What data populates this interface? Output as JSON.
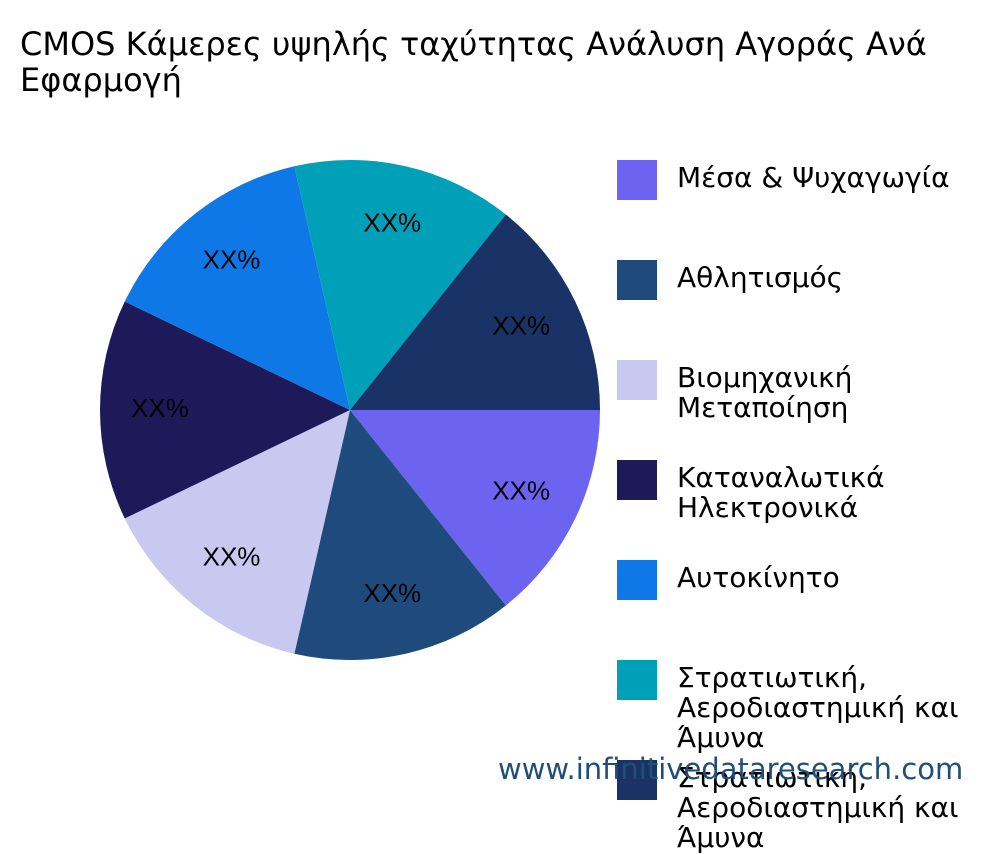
{
  "chart_data": {
    "type": "pie",
    "title": "CMOS Κάμερες υψηλής ταχύτητας Ανάλυση Αγοράς Ανά Εφαρμογή",
    "categories": [
      "Μέσα & Ψυχαγωγία",
      "Αθλητισμός",
      "Βιομηχανική Μεταποίηση",
      "Καταναλωτικά Ηλεκτρονικά",
      "Αυτοκίνητο",
      "Στρατιωτική, Αεροδιαστημική και Άμυνα",
      "Στρατιωτική, Αεροδιαστημική και Άμυνα"
    ],
    "values": [
      14.3,
      14.3,
      14.3,
      14.3,
      14.3,
      14.3,
      14.3
    ],
    "value_labels": [
      "XX%",
      "XX%",
      "XX%",
      "XX%",
      "XX%",
      "XX%",
      "XX%"
    ],
    "colors": [
      "#6c63f0",
      "#1f4a7c",
      "#c8c8f0",
      "#1e1a5a",
      "#0e78e6",
      "#00a0b8",
      "#1a3366"
    ],
    "legend": "right",
    "watermark": "www.infinitivedataresearch.com"
  }
}
